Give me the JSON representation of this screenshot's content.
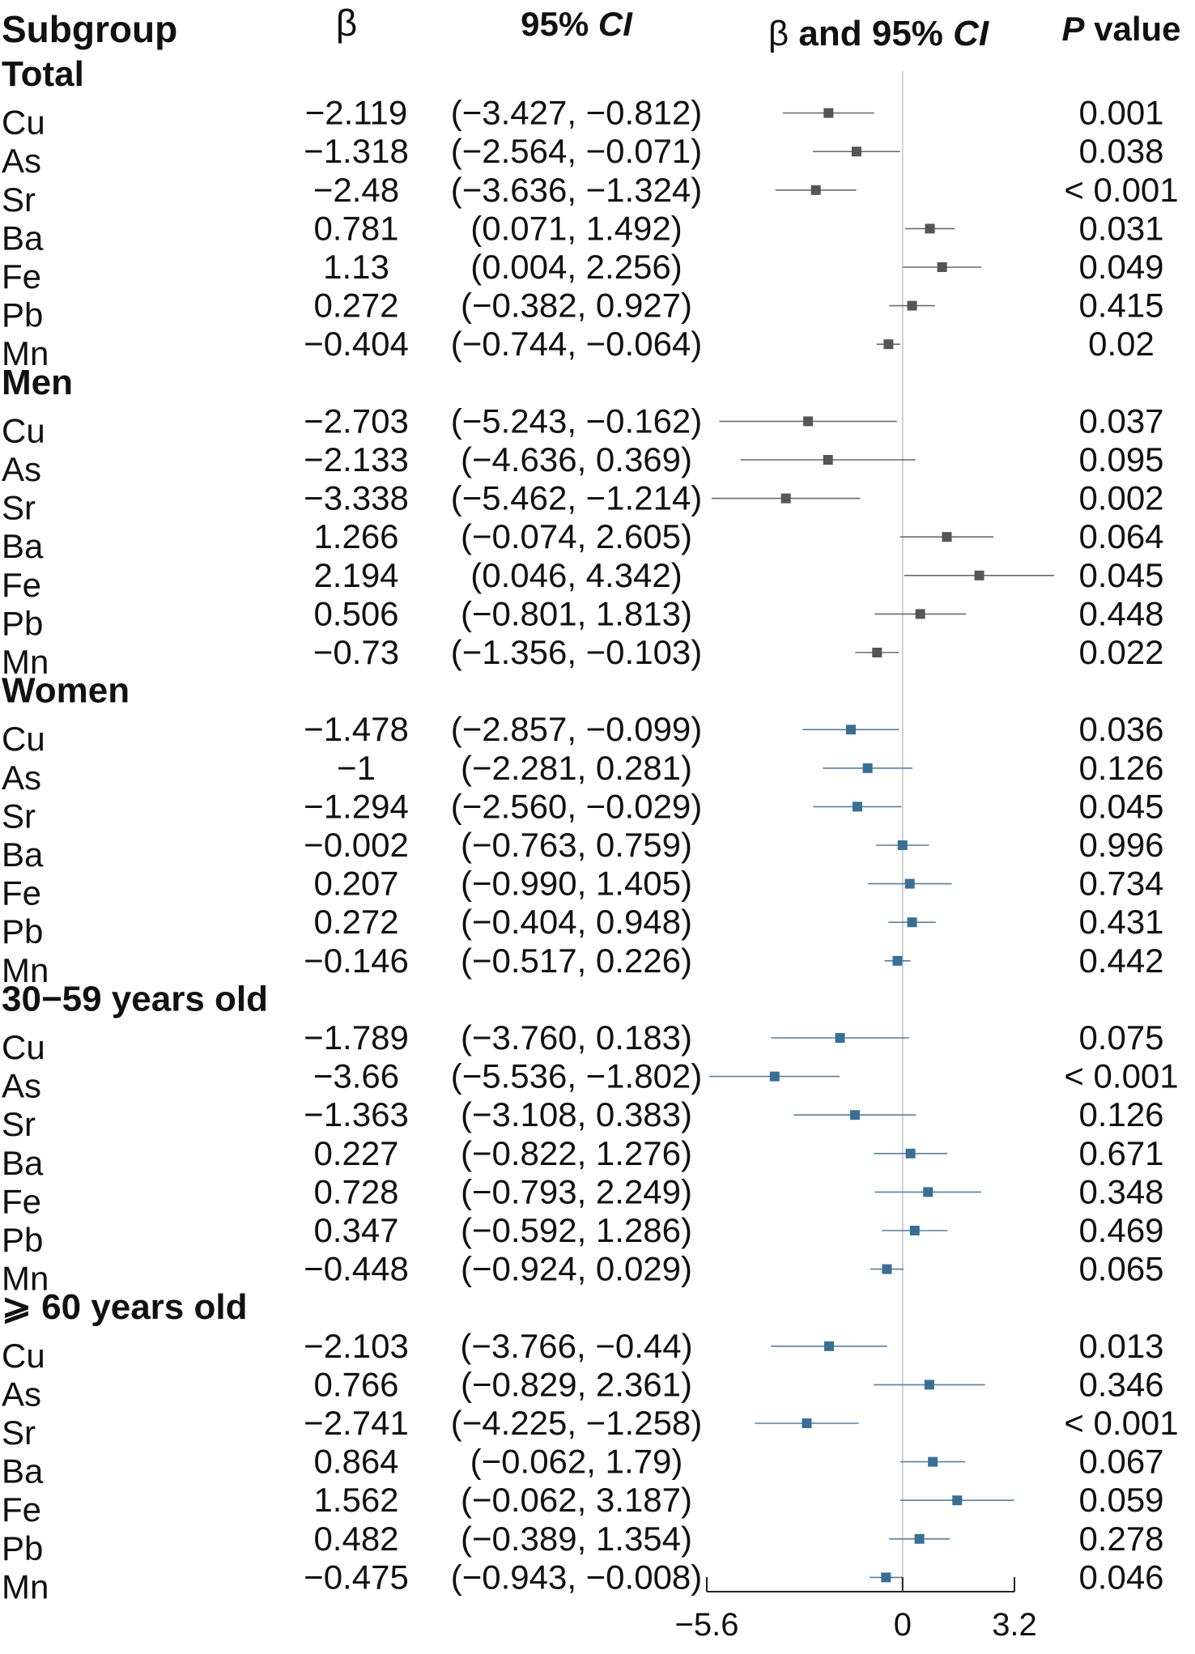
{
  "chart_data": {
    "type": "forest",
    "headers": {
      "subgroup": "Subgroup",
      "beta_symbol": "β",
      "ci_text": "95% ",
      "ci_italic": "CI",
      "plot_beta": "β",
      "plot_and": " and 95% ",
      "plot_ci": "CI",
      "p_italic": "P",
      "p_text": " value"
    },
    "axis": {
      "min": -5.6,
      "max": 3.2,
      "reference": 0,
      "ticks": [
        -5.6,
        0,
        3.2
      ],
      "tick_labels": [
        "−5.6",
        "0",
        "3.2"
      ]
    },
    "colors": {
      "marker_dark": "#555555",
      "marker_blue": "#3a6f94",
      "ci_line_dark": "#6b6b6b",
      "ci_line_blue": "#5a7f9b",
      "reference_line": "#d0d0d0",
      "axis": "#222222"
    },
    "groups": [
      {
        "label": "Total",
        "marker": "dark",
        "rows": [
          {
            "name": "Cu",
            "beta": -2.119,
            "beta_text": "−2.119",
            "lo": -3.427,
            "hi": -0.812,
            "ci_text": "(−3.427, −0.812)",
            "p": "0.001"
          },
          {
            "name": "As",
            "beta": -1.318,
            "beta_text": "−1.318",
            "lo": -2.564,
            "hi": -0.071,
            "ci_text": "(−2.564, −0.071)",
            "p": "0.038"
          },
          {
            "name": "Sr",
            "beta": -2.48,
            "beta_text": "−2.48",
            "lo": -3.636,
            "hi": -1.324,
            "ci_text": "(−3.636, −1.324)",
            "p": "< 0.001"
          },
          {
            "name": "Ba",
            "beta": 0.781,
            "beta_text": "0.781",
            "lo": 0.071,
            "hi": 1.492,
            "ci_text": "(0.071, 1.492)",
            "p": "0.031"
          },
          {
            "name": "Fe",
            "beta": 1.13,
            "beta_text": "1.13",
            "lo": 0.004,
            "hi": 2.256,
            "ci_text": "(0.004, 2.256)",
            "p": "0.049"
          },
          {
            "name": "Pb",
            "beta": 0.272,
            "beta_text": "0.272",
            "lo": -0.382,
            "hi": 0.927,
            "ci_text": "(−0.382, 0.927)",
            "p": "0.415"
          },
          {
            "name": "Mn",
            "beta": -0.404,
            "beta_text": "−0.404",
            "lo": -0.744,
            "hi": -0.064,
            "ci_text": "(−0.744, −0.064)",
            "p": "0.02"
          }
        ]
      },
      {
        "label": "Men",
        "marker": "dark",
        "rows": [
          {
            "name": "Cu",
            "beta": -2.703,
            "beta_text": "−2.703",
            "lo": -5.243,
            "hi": -0.162,
            "ci_text": "(−5.243, −0.162)",
            "p": "0.037"
          },
          {
            "name": "As",
            "beta": -2.133,
            "beta_text": "−2.133",
            "lo": -4.636,
            "hi": 0.369,
            "ci_text": "(−4.636, 0.369)",
            "p": "0.095"
          },
          {
            "name": "Sr",
            "beta": -3.338,
            "beta_text": "−3.338",
            "lo": -5.462,
            "hi": -1.214,
            "ci_text": "(−5.462, −1.214)",
            "p": "0.002"
          },
          {
            "name": "Ba",
            "beta": 1.266,
            "beta_text": "1.266",
            "lo": -0.074,
            "hi": 2.605,
            "ci_text": "(−0.074, 2.605)",
            "p": "0.064"
          },
          {
            "name": "Fe",
            "beta": 2.194,
            "beta_text": "2.194",
            "lo": 0.046,
            "hi": 4.342,
            "ci_text": "(0.046, 4.342)",
            "p": "0.045"
          },
          {
            "name": "Pb",
            "beta": 0.506,
            "beta_text": "0.506",
            "lo": -0.801,
            "hi": 1.813,
            "ci_text": "(−0.801, 1.813)",
            "p": "0.448"
          },
          {
            "name": "Mn",
            "beta": -0.73,
            "beta_text": "−0.73",
            "lo": -1.356,
            "hi": -0.103,
            "ci_text": "(−1.356, −0.103)",
            "p": "0.022"
          }
        ]
      },
      {
        "label": "Women",
        "marker": "blue",
        "rows": [
          {
            "name": "Cu",
            "beta": -1.478,
            "beta_text": "−1.478",
            "lo": -2.857,
            "hi": -0.099,
            "ci_text": "(−2.857, −0.099)",
            "p": "0.036"
          },
          {
            "name": "As",
            "beta": -1,
            "beta_text": "−1",
            "lo": -2.281,
            "hi": 0.281,
            "ci_text": "(−2.281, 0.281)",
            "p": "0.126"
          },
          {
            "name": "Sr",
            "beta": -1.294,
            "beta_text": "−1.294",
            "lo": -2.56,
            "hi": -0.029,
            "ci_text": "(−2.560, −0.029)",
            "p": "0.045"
          },
          {
            "name": "Ba",
            "beta": -0.002,
            "beta_text": "−0.002",
            "lo": -0.763,
            "hi": 0.759,
            "ci_text": "(−0.763, 0.759)",
            "p": "0.996"
          },
          {
            "name": "Fe",
            "beta": 0.207,
            "beta_text": "0.207",
            "lo": -0.99,
            "hi": 1.405,
            "ci_text": "(−0.990, 1.405)",
            "p": "0.734"
          },
          {
            "name": "Pb",
            "beta": 0.272,
            "beta_text": "0.272",
            "lo": -0.404,
            "hi": 0.948,
            "ci_text": "(−0.404, 0.948)",
            "p": "0.431"
          },
          {
            "name": "Mn",
            "beta": -0.146,
            "beta_text": "−0.146",
            "lo": -0.517,
            "hi": 0.226,
            "ci_text": "(−0.517, 0.226)",
            "p": "0.442"
          }
        ]
      },
      {
        "label": "30−59 years old",
        "marker": "blue",
        "rows": [
          {
            "name": "Cu",
            "beta": -1.789,
            "beta_text": "−1.789",
            "lo": -3.76,
            "hi": 0.183,
            "ci_text": "(−3.760, 0.183)",
            "p": "0.075"
          },
          {
            "name": "As",
            "beta": -3.66,
            "beta_text": "−3.66",
            "lo": -5.536,
            "hi": -1.802,
            "ci_text": "(−5.536, −1.802)",
            "p": "< 0.001"
          },
          {
            "name": "Sr",
            "beta": -1.363,
            "beta_text": "−1.363",
            "lo": -3.108,
            "hi": 0.383,
            "ci_text": "(−3.108, 0.383)",
            "p": "0.126"
          },
          {
            "name": "Ba",
            "beta": 0.227,
            "beta_text": "0.227",
            "lo": -0.822,
            "hi": 1.276,
            "ci_text": "(−0.822, 1.276)",
            "p": "0.671"
          },
          {
            "name": "Fe",
            "beta": 0.728,
            "beta_text": "0.728",
            "lo": -0.793,
            "hi": 2.249,
            "ci_text": "(−0.793, 2.249)",
            "p": "0.348"
          },
          {
            "name": "Pb",
            "beta": 0.347,
            "beta_text": "0.347",
            "lo": -0.592,
            "hi": 1.286,
            "ci_text": "(−0.592, 1.286)",
            "p": "0.469"
          },
          {
            "name": "Mn",
            "beta": -0.448,
            "beta_text": "−0.448",
            "lo": -0.924,
            "hi": 0.029,
            "ci_text": "(−0.924, 0.029)",
            "p": "0.065"
          }
        ]
      },
      {
        "label": "⩾ 60 years old",
        "marker": "blue",
        "rows": [
          {
            "name": "Cu",
            "beta": -2.103,
            "beta_text": "−2.103",
            "lo": -3.766,
            "hi": -0.44,
            "ci_text": "(−3.766, −0.44)",
            "p": "0.013"
          },
          {
            "name": "As",
            "beta": 0.766,
            "beta_text": "0.766",
            "lo": -0.829,
            "hi": 2.361,
            "ci_text": "(−0.829, 2.361)",
            "p": "0.346"
          },
          {
            "name": "Sr",
            "beta": -2.741,
            "beta_text": "−2.741",
            "lo": -4.225,
            "hi": -1.258,
            "ci_text": "(−4.225, −1.258)",
            "p": "< 0.001"
          },
          {
            "name": "Ba",
            "beta": 0.864,
            "beta_text": "0.864",
            "lo": -0.062,
            "hi": 1.79,
            "ci_text": "(−0.062, 1.79)",
            "p": "0.067"
          },
          {
            "name": "Fe",
            "beta": 1.562,
            "beta_text": "1.562",
            "lo": -0.062,
            "hi": 3.187,
            "ci_text": "(−0.062, 3.187)",
            "p": "0.059"
          },
          {
            "name": "Pb",
            "beta": 0.482,
            "beta_text": "0.482",
            "lo": -0.389,
            "hi": 1.354,
            "ci_text": "(−0.389, 1.354)",
            "p": "0.278"
          },
          {
            "name": "Mn",
            "beta": -0.475,
            "beta_text": "−0.475",
            "lo": -0.943,
            "hi": -0.008,
            "ci_text": "(−0.943, −0.008)",
            "p": "0.046"
          }
        ]
      }
    ]
  }
}
